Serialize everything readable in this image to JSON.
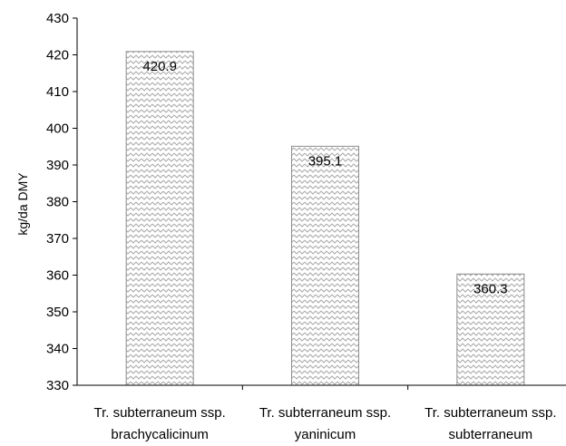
{
  "chart_data": {
    "type": "bar",
    "title": "",
    "xlabel": "",
    "ylabel": "kg/da DMY",
    "ylim": [
      330,
      430
    ],
    "y_ticks": [
      330,
      340,
      350,
      360,
      370,
      380,
      390,
      400,
      410,
      420,
      430
    ],
    "categories": [
      [
        "Tr. subterraneum ssp.",
        "brachycalicinum"
      ],
      [
        "Tr. subterraneum ssp.",
        "yaninicum"
      ],
      [
        "Tr. subterraneum ssp.",
        "subterraneum"
      ]
    ],
    "values": [
      420.9,
      395.1,
      360.3
    ],
    "data_labels": [
      "420.9",
      "395.1",
      "360.3"
    ],
    "bar_fill": "zigzag-hatch",
    "colors": {
      "bar_fill": "#ffffff",
      "bar_pattern": "#a9a9a9",
      "bar_border": "#8c8c8c",
      "axis": "#000000"
    },
    "grid": false,
    "legend": "none"
  }
}
